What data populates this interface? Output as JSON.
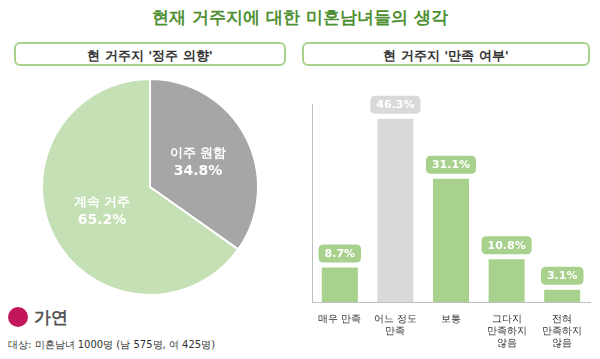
{
  "title": "현재 거주지에 대한 미혼남녀들의 생각",
  "logo": "가연",
  "note": "대상: 미혼남녀 1000명 (남 575명, 여 425명)",
  "chart_data": [
    {
      "type": "pie",
      "title": "현 거주지 '정주 의향'",
      "categories": [
        "이주 원함",
        "계속 거주"
      ],
      "values": [
        34.8,
        65.2
      ],
      "value_labels": [
        "34.8%",
        "65.2%"
      ],
      "colors": [
        "#a6a6a6",
        "#c5e0b4"
      ],
      "data_labels": true
    },
    {
      "type": "bar",
      "title": "현 거주지 '만족 여부'",
      "categories": [
        "매우 만족",
        "어느 정도 만족",
        "보통",
        "그다지 만족하지 않음",
        "전혀 만족하지 않음"
      ],
      "values": [
        8.7,
        46.3,
        31.1,
        10.8,
        3.1
      ],
      "value_labels": [
        "8.7%",
        "46.3%",
        "31.1%",
        "10.8%",
        "3.1%"
      ],
      "colors": [
        "#a9d18e",
        "#d9d9d9",
        "#a9d18e",
        "#a9d18e",
        "#a9d18e"
      ],
      "ylim": [
        0,
        50
      ],
      "grid": false,
      "data_labels": true,
      "tick_labels": "x"
    }
  ]
}
